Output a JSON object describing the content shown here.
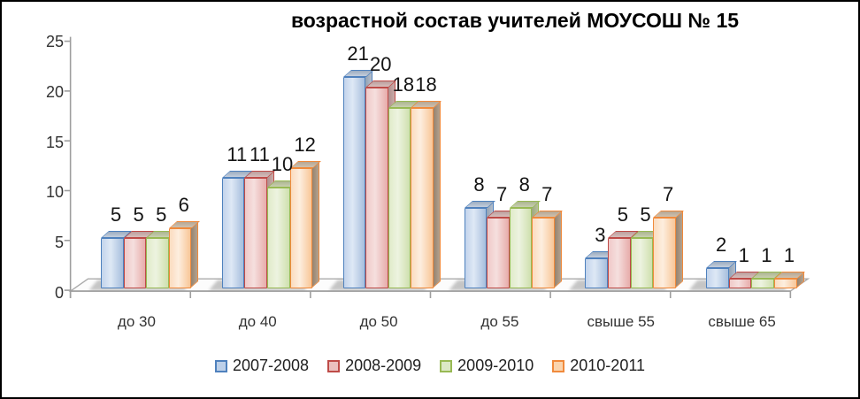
{
  "frame": {
    "background": "#ffffff",
    "border_color": "#000000"
  },
  "chart_data": {
    "type": "bar",
    "title": "возрастной состав учителей МОУСОШ № 15",
    "categories": [
      "до 30",
      "до 40",
      "до 50",
      "до 55",
      "свыше 55",
      "свыше 65"
    ],
    "series": [
      {
        "name": "2007-2008",
        "values": [
          5,
          11,
          21,
          8,
          3,
          2
        ],
        "color": "#4F81BD",
        "fill_light": "#DEE8F5",
        "fill_mid": "#C3D4EC",
        "fill_dark": "#A6BEDD",
        "top_face": "#9CACC0",
        "top_light": "#C4CEDC",
        "side_face": "#93A2B4",
        "side_light": "#B3BECB",
        "legend_fill": "#BDD0E9"
      },
      {
        "name": "2008-2009",
        "values": [
          5,
          11,
          20,
          7,
          5,
          1
        ],
        "color": "#BE4B48",
        "fill_light": "#F5DFDE",
        "fill_mid": "#F0C9C8",
        "fill_dark": "#E7ACAA",
        "top_face": "#BC9E9C",
        "top_light": "#D6BEBC",
        "side_face": "#B08F8D",
        "side_light": "#C9ABA9",
        "legend_fill": "#EBC0BF"
      },
      {
        "name": "2009-2010",
        "values": [
          5,
          10,
          18,
          8,
          5,
          1
        ],
        "color": "#98B954",
        "fill_light": "#EDF3E0",
        "fill_mid": "#E0EBC9",
        "fill_dark": "#CFE0AE",
        "top_face": "#ACB591",
        "top_light": "#C8CFB0",
        "side_face": "#9DA77F",
        "side_light": "#B8C09C",
        "legend_fill": "#DCE9C6"
      },
      {
        "name": "2010-2011",
        "values": [
          6,
          12,
          18,
          7,
          7,
          1
        ],
        "color": "#F08A3C",
        "fill_light": "#FDEEDF",
        "fill_mid": "#FBDCBF",
        "fill_dark": "#F8C697",
        "top_face": "#B7A794",
        "top_light": "#CDC1B0",
        "side_face": "#96836F",
        "side_light": "#B3A28F",
        "legend_fill": "#FAD4AE"
      }
    ],
    "y_axis": {
      "ticks": [
        0,
        5,
        10,
        15,
        20,
        25
      ],
      "min": 0,
      "max": 25
    },
    "legend_position": "bottom",
    "gridlines": false,
    "data_labels": true,
    "axis_color": "#9E9E9E",
    "floor_edge_color": "#ABABAB",
    "text_color": "#333333"
  }
}
